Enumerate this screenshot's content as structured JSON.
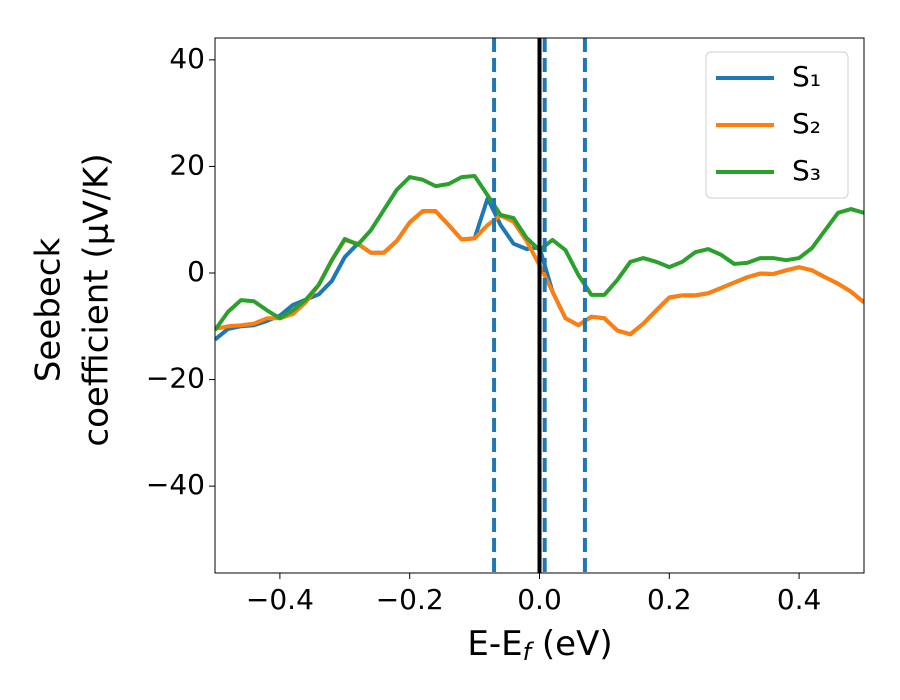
{
  "chart_data": {
    "type": "line",
    "xlabel": [
      "E-E",
      "f",
      " (eV)"
    ],
    "ylabel": [
      "Seebeck",
      "coefficient  (μV/K)"
    ],
    "x": [
      -0.5,
      -0.48,
      -0.46,
      -0.44,
      -0.42,
      -0.4,
      -0.38,
      -0.36,
      -0.34,
      -0.32,
      -0.3,
      -0.28,
      -0.26,
      -0.24,
      -0.22,
      -0.2,
      -0.18,
      -0.16,
      -0.14,
      -0.12,
      -0.1,
      -0.08,
      -0.06,
      -0.04,
      -0.02,
      0,
      0.02,
      0.04,
      0.06,
      0.08,
      0.1,
      0.12,
      0.14,
      0.16,
      0.18,
      0.2,
      0.22,
      0.24,
      0.26,
      0.28,
      0.3,
      0.32,
      0.34,
      0.36,
      0.38,
      0.4,
      0.42,
      0.44,
      0.46,
      0.48,
      0.5
    ],
    "series": [
      {
        "name": "S₁",
        "color": "#1f77b4",
        "values": [
          -12.5,
          -10.5,
          -10,
          -9.8,
          -9,
          -8,
          -6,
          -5,
          -4,
          -1.5,
          3,
          5.5,
          3.8,
          3.8,
          6,
          9.5,
          11.6,
          11.6,
          9,
          6.3,
          6.5,
          14,
          9,
          5.5,
          4.5,
          4.8,
          -3.5,
          -8.5,
          -9.8,
          -8.2,
          -8.5,
          -10.8,
          -11.5,
          -9.5,
          -7,
          -4.6,
          -4.2,
          -4.2,
          -3.8,
          -2.8,
          -1.8,
          -0.8,
          -0.1,
          -0.2,
          0.5,
          1.1,
          0.5,
          -0.8,
          -2,
          -3.5,
          -5.5
        ]
      },
      {
        "name": "S₂",
        "color": "#ff7f0e",
        "values": [
          -10.5,
          -10,
          -9.8,
          -9.5,
          -8.5,
          -8.5,
          -7.7,
          -5.5,
          -2.2,
          2.4,
          6.2,
          5.5,
          3.8,
          3.8,
          6,
          9.5,
          11.6,
          11.6,
          9,
          6.3,
          6.5,
          9,
          10.8,
          9.6,
          6,
          1.5,
          -3.5,
          -8.5,
          -9.8,
          -8.2,
          -8.5,
          -10.8,
          -11.5,
          -9.5,
          -7,
          -4.6,
          -4.2,
          -4.2,
          -3.8,
          -2.8,
          -1.8,
          -0.8,
          -0.1,
          -0.2,
          0.5,
          1.1,
          0.5,
          -0.8,
          -2,
          -3.5,
          -5.5
        ]
      },
      {
        "name": "S₃",
        "color": "#2ca02c",
        "values": [
          -10.7,
          -7.3,
          -5.1,
          -5.3,
          -7,
          -8.5,
          -7,
          -5,
          -2.2,
          2.4,
          6.4,
          5.3,
          8,
          11.8,
          15.6,
          18,
          17.5,
          16.3,
          16.7,
          18,
          18.2,
          14.6,
          10.9,
          10.3,
          6.6,
          4.3,
          6.2,
          4.3,
          -0.4,
          -4.1,
          -4.1,
          -1.3,
          2.1,
          2.8,
          2.1,
          1.1,
          2.1,
          3.9,
          4.5,
          3.4,
          1.7,
          1.9,
          2.8,
          2.8,
          2.4,
          2.8,
          4.7,
          8,
          11.3,
          12,
          11.3
        ]
      }
    ],
    "vlines": [
      {
        "x": -0.07,
        "color": "#1f77b4",
        "style": "dashed"
      },
      {
        "x": 0.008,
        "color": "#1f77b4",
        "style": "dashed"
      },
      {
        "x": 0.07,
        "color": "#1f77b4",
        "style": "dashed"
      },
      {
        "x": 0,
        "color": "#000000",
        "style": "solid"
      }
    ],
    "xlim": [
      -0.5,
      0.5
    ],
    "xticks": [
      {
        "value": -0.4,
        "label": "−0.4"
      },
      {
        "value": -0.2,
        "label": "−0.2"
      },
      {
        "value": 0,
        "label": "0.0"
      },
      0.2,
      0.4
    ],
    "ylim": [
      -56.3,
      44.1
    ],
    "yticks": [
      {
        "value": -40,
        "label": "−40"
      },
      {
        "value": -20,
        "label": "−20"
      },
      0,
      20,
      40
    ],
    "grid": false,
    "legend": "upper right"
  }
}
